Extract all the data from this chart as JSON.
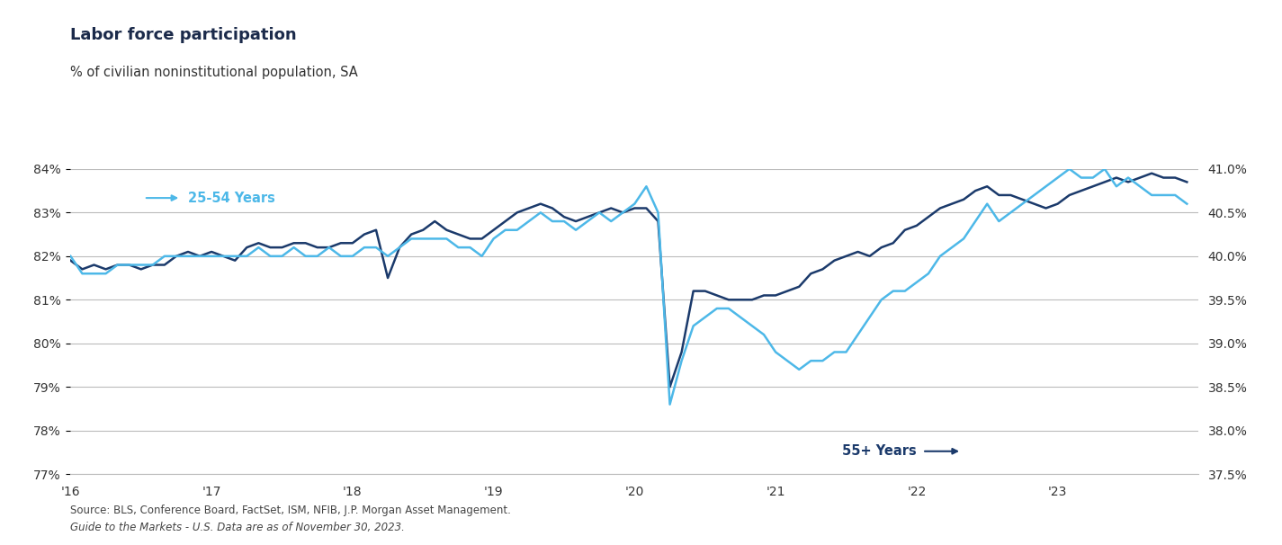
{
  "title": "Labor force participation",
  "subtitle": "% of civilian noninstitutional population, SA",
  "source_text": "Source: BLS, Conference Board, FactSet, ISM, NFIB, J.P. Morgan Asset Management.",
  "source_italic": "Guide to the Markets - U.S. Data are as of November 30, 2023.",
  "left_ylim": [
    77,
    84
  ],
  "right_ylim": [
    37.5,
    41.0
  ],
  "left_yticks": [
    77,
    78,
    79,
    80,
    81,
    82,
    83,
    84
  ],
  "right_yticks": [
    37.5,
    38.0,
    38.5,
    39.0,
    39.5,
    40.0,
    40.5,
    41.0
  ],
  "color_dark": "#1B3A6B",
  "color_light": "#4DB8E8",
  "background_color": "#FFFFFF",
  "grid_color": "#BBBBBB",
  "label_25_54": "25-54 Years",
  "label_55plus": "55+ Years",
  "xtick_labels": [
    "'16",
    "'17",
    "'18",
    "'19",
    "'20",
    "'21",
    "'22",
    "'23"
  ],
  "series_25_54": [
    81.9,
    81.7,
    81.8,
    81.7,
    81.8,
    81.8,
    81.7,
    81.8,
    81.8,
    82.0,
    82.1,
    82.0,
    82.1,
    82.0,
    81.9,
    82.2,
    82.3,
    82.2,
    82.2,
    82.3,
    82.3,
    82.2,
    82.2,
    82.3,
    82.3,
    82.5,
    82.6,
    81.5,
    82.2,
    82.5,
    82.6,
    82.8,
    82.6,
    82.5,
    82.4,
    82.4,
    82.6,
    82.8,
    83.0,
    83.1,
    83.2,
    83.1,
    82.9,
    82.8,
    82.9,
    83.0,
    83.1,
    83.0,
    83.1,
    83.1,
    82.8,
    79.0,
    79.8,
    81.2,
    81.2,
    81.1,
    81.0,
    81.0,
    81.0,
    81.1,
    81.1,
    81.2,
    81.3,
    81.6,
    81.7,
    81.9,
    82.0,
    82.1,
    82.0,
    82.2,
    82.3,
    82.6,
    82.7,
    82.9,
    83.1,
    83.2,
    83.3,
    83.5,
    83.6,
    83.4,
    83.4,
    83.3,
    83.2,
    83.1,
    83.2,
    83.4,
    83.5,
    83.6,
    83.7,
    83.8,
    83.7,
    83.8,
    83.9,
    83.8,
    83.8,
    83.7
  ],
  "series_55plus": [
    40.0,
    39.8,
    39.8,
    39.8,
    39.9,
    39.9,
    39.9,
    39.9,
    40.0,
    40.0,
    40.0,
    40.0,
    40.0,
    40.0,
    40.0,
    40.0,
    40.1,
    40.0,
    40.0,
    40.1,
    40.0,
    40.0,
    40.1,
    40.0,
    40.0,
    40.1,
    40.1,
    40.0,
    40.1,
    40.2,
    40.2,
    40.2,
    40.2,
    40.1,
    40.1,
    40.0,
    40.2,
    40.3,
    40.3,
    40.4,
    40.5,
    40.4,
    40.4,
    40.3,
    40.4,
    40.5,
    40.4,
    40.5,
    40.6,
    40.8,
    40.5,
    38.3,
    38.8,
    39.2,
    39.3,
    39.4,
    39.4,
    39.3,
    39.2,
    39.1,
    38.9,
    38.8,
    38.7,
    38.8,
    38.8,
    38.9,
    38.9,
    39.1,
    39.3,
    39.5,
    39.6,
    39.6,
    39.7,
    39.8,
    40.0,
    40.1,
    40.2,
    40.4,
    40.6,
    40.4,
    40.5,
    40.6,
    40.7,
    40.8,
    40.9,
    41.0,
    40.9,
    40.9,
    41.0,
    40.8,
    40.9,
    40.8,
    40.7,
    40.7,
    40.7,
    40.6
  ]
}
